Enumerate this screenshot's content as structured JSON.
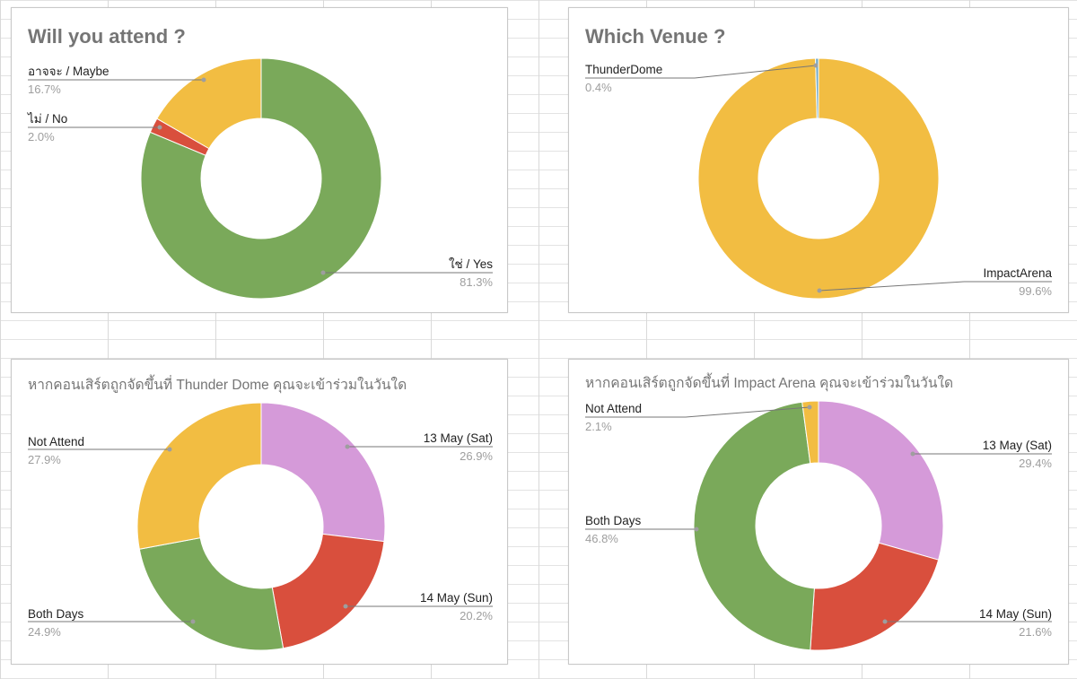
{
  "chart_data": [
    {
      "type": "pie",
      "title": "Will you attend ?",
      "slices": [
        {
          "label": "ใช่ / Yes",
          "percent_label": "81.3%",
          "value": 81.3,
          "color": "#7aa95a"
        },
        {
          "label": "ไม่ / No",
          "percent_label": "2.0%",
          "value": 2.0,
          "color": "#d94f3d"
        },
        {
          "label": "อาจจะ / Maybe",
          "percent_label": "16.7%",
          "value": 16.7,
          "color": "#f2bd42"
        }
      ]
    },
    {
      "type": "pie",
      "title": "Which Venue ?",
      "slices": [
        {
          "label": "ImpactArena",
          "percent_label": "99.6%",
          "value": 99.6,
          "color": "#f2bd42"
        },
        {
          "label": "ThunderDome",
          "percent_label": "0.4%",
          "value": 0.4,
          "color": "#6fa8c8"
        }
      ]
    },
    {
      "type": "pie",
      "title": "หากคอนเสิร์ตถูกจัดขึ้นที่ Thunder Dome คุณจะเข้าร่วมในวันใด",
      "slices": [
        {
          "label": "13 May (Sat)",
          "percent_label": "26.9%",
          "value": 26.9,
          "color": "#d59ad9"
        },
        {
          "label": "14 May (Sun)",
          "percent_label": "20.2%",
          "value": 20.2,
          "color": "#d94f3d"
        },
        {
          "label": "Both Days",
          "percent_label": "24.9%",
          "value": 24.9,
          "color": "#7aa95a"
        },
        {
          "label": "Not Attend",
          "percent_label": "27.9%",
          "value": 27.9,
          "color": "#f2bd42"
        }
      ]
    },
    {
      "type": "pie",
      "title": "หากคอนเสิร์ตถูกจัดขึ้นที่ Impact Arena คุณจะเข้าร่วมในวันใด",
      "slices": [
        {
          "label": "13 May (Sat)",
          "percent_label": "29.4%",
          "value": 29.4,
          "color": "#d59ad9"
        },
        {
          "label": "14 May (Sun)",
          "percent_label": "21.6%",
          "value": 21.6,
          "color": "#d94f3d"
        },
        {
          "label": "Both Days",
          "percent_label": "46.8%",
          "value": 46.8,
          "color": "#7aa95a"
        },
        {
          "label": "Not Attend",
          "percent_label": "2.1%",
          "value": 2.1,
          "color": "#f2bd42"
        }
      ]
    }
  ]
}
